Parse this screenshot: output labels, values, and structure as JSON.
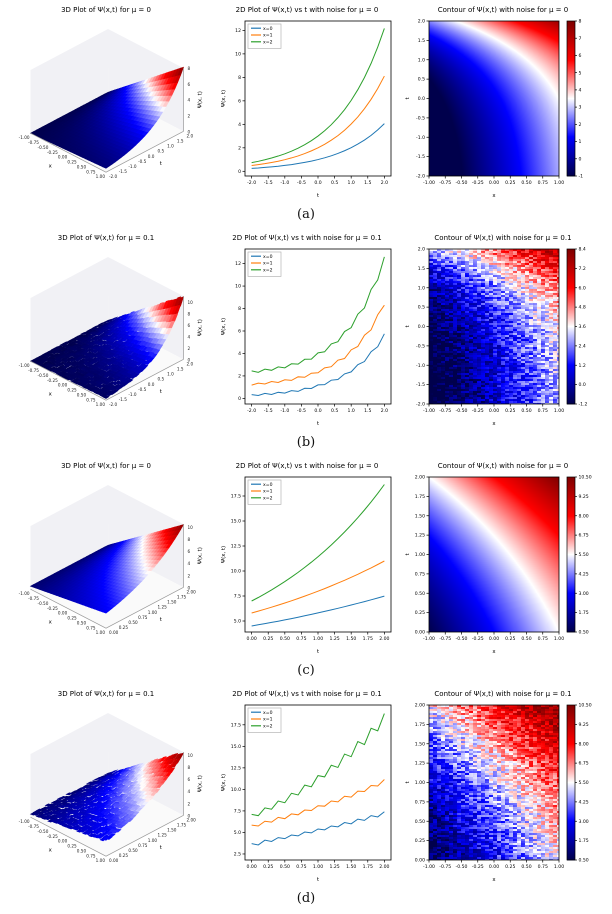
{
  "page": {
    "background": "#ffffff"
  },
  "captions": [
    "(a)",
    "(b)",
    "(c)",
    "(d)"
  ],
  "palette": {
    "series_blue": "#1f77b4",
    "series_orange": "#ff7f0e",
    "series_green": "#2ca02c",
    "seismic_stops": [
      [
        0,
        "#00004c"
      ],
      [
        0.25,
        "#0000ff"
      ],
      [
        0.5,
        "#ffffff"
      ],
      [
        0.75,
        "#ff0000"
      ],
      [
        1,
        "#7f0000"
      ]
    ]
  },
  "chart_data": [
    {
      "id": "a-surface",
      "type": "surface",
      "title": "3D Plot of Ψ(x,t) for μ = 0",
      "xlabel": "x",
      "ylabel": "t",
      "zlabel": "Ψ(x, t)",
      "x_range": [
        -1,
        1
      ],
      "t_range": [
        -2,
        2
      ],
      "z_range": [
        0,
        8
      ],
      "x_ticks": [
        "-1.00",
        "-0.75",
        "-0.50",
        "-0.25",
        "0.00",
        "0.25",
        "0.50",
        "0.75",
        "1.00"
      ],
      "t_ticks": [
        "-2.0",
        "-1.5",
        "-1.0",
        "-0.5",
        "0.0",
        "0.5",
        "1.0",
        "1.5",
        "2.0"
      ],
      "z_ticks": [
        "0",
        "2",
        "4",
        "6",
        "8"
      ],
      "model": {
        "A": 1,
        "k": 0.7,
        "offset": 0,
        "noise": 0
      }
    },
    {
      "id": "a-line",
      "type": "line",
      "title": "2D Plot of Ψ(x,t) vs t with noise for μ = 0",
      "xlabel": "t",
      "ylabel": "Ψ(x, t)",
      "grid": false,
      "legend_loc": "upper left",
      "xlim": [
        -2.2,
        2.2
      ],
      "ylim": [
        -0.4,
        12.8
      ],
      "x_tick_labels": [
        "-2.0",
        "-1.5",
        "-1.0",
        "-0.5",
        "0.0",
        "0.5",
        "1.0",
        "1.5",
        "2.0"
      ],
      "y_tick_labels": [
        "0",
        "2",
        "4",
        "6",
        "8",
        "10",
        "12"
      ],
      "x": [
        -2.0,
        -1.8,
        -1.6,
        -1.4,
        -1.2,
        -1.0,
        -0.8,
        -0.6,
        -0.4,
        -0.2,
        0.0,
        0.2,
        0.4,
        0.6,
        0.8,
        1.0,
        1.2,
        1.4,
        1.6,
        1.8,
        2.0
      ],
      "series": [
        {
          "name": "x=0",
          "color": "#1f77b4",
          "values": [
            0.25,
            0.28,
            0.33,
            0.38,
            0.43,
            0.5,
            0.57,
            0.66,
            0.76,
            0.87,
            1.0,
            1.15,
            1.32,
            1.52,
            1.75,
            2.01,
            2.32,
            2.66,
            3.06,
            3.53,
            4.06
          ]
        },
        {
          "name": "x=1",
          "color": "#ff7f0e",
          "values": [
            0.49,
            0.57,
            0.65,
            0.75,
            0.86,
            0.99,
            1.14,
            1.31,
            1.51,
            1.74,
            2.0,
            2.3,
            2.65,
            3.04,
            3.5,
            4.03,
            4.63,
            5.33,
            6.13,
            7.05,
            8.11
          ]
        },
        {
          "name": "x=2",
          "color": "#2ca02c",
          "values": [
            0.74,
            0.85,
            0.98,
            1.13,
            1.3,
            1.49,
            1.71,
            1.97,
            2.27,
            2.61,
            3.0,
            3.45,
            3.97,
            4.57,
            5.25,
            6.04,
            6.95,
            7.99,
            9.19,
            10.58,
            12.17
          ]
        }
      ]
    },
    {
      "id": "a-contour",
      "type": "heatmap",
      "title": "Contour of Ψ(x,t) with noise for μ = 0",
      "xlabel": "x",
      "ylabel": "t",
      "x_range": [
        -1,
        1
      ],
      "t_range": [
        -2,
        2
      ],
      "vmin": -1,
      "vmax": 8,
      "x_tick_labels": [
        "-1.00",
        "-0.75",
        "-0.50",
        "-0.25",
        "0.00",
        "0.25",
        "0.50",
        "0.75",
        "1.00"
      ],
      "y_tick_labels": [
        "-2.0",
        "-1.5",
        "-1.0",
        "-0.5",
        "0.0",
        "0.5",
        "1.0",
        "1.5",
        "2.0"
      ],
      "colorbar_ticks": [
        "8",
        "7",
        "6",
        "5",
        "4",
        "3",
        "2",
        "1",
        "0",
        "-1"
      ],
      "model": {
        "A": 1,
        "k": 0.8,
        "B": 2.5,
        "C": 0,
        "noise": 0
      }
    },
    {
      "id": "b-surface",
      "type": "surface",
      "title": "3D Plot of Ψ(x,t) for μ = 0.1",
      "xlabel": "x",
      "ylabel": "t",
      "zlabel": "Ψ(x, t)",
      "x_range": [
        -1,
        1
      ],
      "t_range": [
        -2,
        2
      ],
      "z_range": [
        0,
        11
      ],
      "x_ticks": [
        "-1.00",
        "-0.75",
        "-0.50",
        "-0.25",
        "0.00",
        "0.25",
        "0.50",
        "0.75",
        "1.00"
      ],
      "t_ticks": [
        "-2.0",
        "-1.5",
        "-1.0",
        "-0.5",
        "0.0",
        "0.5",
        "1.0",
        "1.5",
        "2.0"
      ],
      "z_ticks": [
        "0",
        "2",
        "4",
        "6",
        "8",
        "10"
      ],
      "model": {
        "A": 1,
        "k": 0.85,
        "offset": 0,
        "noise": 0.2
      }
    },
    {
      "id": "b-line",
      "type": "line",
      "title": "2D Plot of Ψ(x,t) vs t with noise for μ = 0.1",
      "xlabel": "t",
      "ylabel": "Ψ(x, t)",
      "grid": false,
      "legend_loc": "upper left",
      "xlim": [
        -2.2,
        2.2
      ],
      "ylim": [
        -0.5,
        13.3
      ],
      "x_tick_labels": [
        "-2.0",
        "-1.5",
        "-1.0",
        "-0.5",
        "0.0",
        "0.5",
        "1.0",
        "1.5",
        "2.0"
      ],
      "y_tick_labels": [
        "0",
        "2",
        "4",
        "6",
        "8",
        "10",
        "12"
      ],
      "x": [
        -2.0,
        -1.8,
        -1.6,
        -1.4,
        -1.2,
        -1.0,
        -0.8,
        -0.6,
        -0.4,
        -0.2,
        0.0,
        0.2,
        0.4,
        0.6,
        0.8,
        1.0,
        1.2,
        1.4,
        1.6,
        1.8,
        2.0
      ],
      "series": [
        {
          "name": "x=0",
          "color": "#1f77b4",
          "values": [
            0.33,
            0.26,
            0.44,
            0.35,
            0.54,
            0.47,
            0.69,
            0.62,
            0.9,
            0.88,
            1.2,
            1.22,
            1.62,
            1.68,
            2.18,
            2.36,
            3.0,
            3.28,
            4.15,
            4.6,
            5.75
          ]
        },
        {
          "name": "x=1",
          "color": "#ff7f0e",
          "values": [
            1.18,
            1.36,
            1.28,
            1.5,
            1.42,
            1.66,
            1.6,
            1.92,
            1.88,
            2.24,
            2.28,
            2.72,
            2.82,
            3.4,
            3.55,
            4.32,
            4.62,
            5.62,
            6.1,
            7.45,
            8.3
          ]
        },
        {
          "name": "x=2",
          "color": "#2ca02c",
          "values": [
            2.45,
            2.32,
            2.6,
            2.5,
            2.8,
            2.72,
            3.08,
            3.05,
            3.48,
            3.5,
            4.05,
            4.15,
            4.85,
            5.05,
            5.95,
            6.3,
            7.5,
            8.05,
            9.7,
            10.55,
            12.6
          ]
        }
      ]
    },
    {
      "id": "b-contour",
      "type": "heatmap",
      "title": "Contour of Ψ(x,t) with noise for μ = 0.1",
      "xlabel": "x",
      "ylabel": "t",
      "x_range": [
        -1,
        1
      ],
      "t_range": [
        -2,
        2
      ],
      "vmin": -1.2,
      "vmax": 8.4,
      "x_tick_labels": [
        "-1.00",
        "-0.75",
        "-0.50",
        "-0.25",
        "0.00",
        "0.25",
        "0.50",
        "0.75",
        "1.00"
      ],
      "y_tick_labels": [
        "-2.0",
        "-1.5",
        "-1.0",
        "-0.5",
        "0.0",
        "0.5",
        "1.0",
        "1.5",
        "2.0"
      ],
      "colorbar_ticks": [
        "8.4",
        "7.2",
        "6.0",
        "4.8",
        "3.6",
        "2.4",
        "1.2",
        "0.0",
        "-1.2"
      ],
      "model": {
        "A": 1,
        "k": 0.8,
        "B": 2.5,
        "C": 0.2,
        "noise": 1.1
      }
    },
    {
      "id": "c-surface",
      "type": "surface",
      "title": "3D Plot of Ψ(x,t) for μ = 0",
      "xlabel": "x",
      "ylabel": "t",
      "zlabel": "Ψ(x, t)",
      "x_range": [
        -1,
        1
      ],
      "t_range": [
        0,
        2
      ],
      "z_range": [
        0,
        10.5
      ],
      "x_ticks": [
        "-1.00",
        "-0.75",
        "-0.50",
        "-0.25",
        "0.00",
        "0.25",
        "0.50",
        "0.75",
        "1.00"
      ],
      "t_ticks": [
        "0.00",
        "0.25",
        "0.50",
        "0.75",
        "1.00",
        "1.25",
        "1.50",
        "1.75",
        "2.00"
      ],
      "z_ticks": [
        "0",
        "2",
        "4",
        "6",
        "8",
        "10"
      ],
      "model": {
        "A": 1,
        "k": 0.8,
        "offset": 0.5,
        "noise": 0
      }
    },
    {
      "id": "c-line",
      "type": "line",
      "title": "2D Plot of Ψ(x,t) vs t with noise for μ = 0",
      "xlabel": "t",
      "ylabel": "Ψ(x, t)",
      "grid": false,
      "legend_loc": "upper left",
      "xlim": [
        -0.1,
        2.1
      ],
      "ylim": [
        3.9,
        19.4
      ],
      "x_tick_labels": [
        "0.00",
        "0.25",
        "0.50",
        "0.75",
        "1.00",
        "1.25",
        "1.50",
        "1.75",
        "2.00"
      ],
      "y_tick_labels": [
        "5.0",
        "7.5",
        "10.0",
        "12.5",
        "15.0",
        "17.5"
      ],
      "x": [
        0.0,
        0.1,
        0.2,
        0.3,
        0.4,
        0.5,
        0.6,
        0.7,
        0.8,
        0.9,
        1.0,
        1.1,
        1.2,
        1.3,
        1.4,
        1.5,
        1.6,
        1.7,
        1.8,
        1.9,
        2.0
      ],
      "series": [
        {
          "name": "x=0",
          "color": "#1f77b4",
          "values": [
            4.5,
            4.62,
            4.74,
            4.86,
            4.98,
            5.11,
            5.24,
            5.38,
            5.52,
            5.66,
            5.81,
            5.96,
            6.11,
            6.27,
            6.43,
            6.6,
            6.77,
            6.94,
            7.12,
            7.3,
            7.49
          ]
        },
        {
          "name": "x=1",
          "color": "#ff7f0e",
          "values": [
            5.8,
            5.99,
            6.18,
            6.38,
            6.59,
            6.8,
            7.02,
            7.25,
            7.49,
            7.73,
            7.98,
            8.24,
            8.51,
            8.79,
            9.07,
            9.37,
            9.67,
            9.99,
            10.31,
            10.65,
            11.0
          ]
        },
        {
          "name": "x=2",
          "color": "#2ca02c",
          "values": [
            7.0,
            7.35,
            7.72,
            8.11,
            8.52,
            8.94,
            9.39,
            9.86,
            10.36,
            10.88,
            11.43,
            12.0,
            12.6,
            13.24,
            13.9,
            14.6,
            15.33,
            16.1,
            16.91,
            17.76,
            18.65
          ]
        }
      ]
    },
    {
      "id": "c-contour",
      "type": "heatmap",
      "title": "Contour of Ψ(x,t) with noise for μ = 0",
      "xlabel": "x",
      "ylabel": "t",
      "x_range": [
        -1,
        1
      ],
      "t_range": [
        0,
        2
      ],
      "vmin": 0.5,
      "vmax": 10.5,
      "x_tick_labels": [
        "-1.00",
        "-0.75",
        "-0.50",
        "-0.25",
        "0.00",
        "0.25",
        "0.50",
        "0.75",
        "1.00"
      ],
      "y_tick_labels": [
        "0.00",
        "0.25",
        "0.50",
        "0.75",
        "1.00",
        "1.25",
        "1.50",
        "1.75",
        "2.00"
      ],
      "colorbar_ticks": [
        "10.50",
        "9.25",
        "8.00",
        "6.75",
        "5.50",
        "4.25",
        "3.00",
        "1.75",
        "0.50"
      ],
      "model": {
        "A": 2.91,
        "k": 0.5,
        "B": 2.5,
        "C": 0.09,
        "noise": 0
      }
    },
    {
      "id": "d-surface",
      "type": "surface",
      "title": "3D Plot of Ψ(x,t) for μ = 0.1",
      "xlabel": "x",
      "ylabel": "t",
      "zlabel": "Ψ(x, t)",
      "x_range": [
        -1,
        1
      ],
      "t_range": [
        0,
        2
      ],
      "z_range": [
        0,
        10.5
      ],
      "x_ticks": [
        "-1.00",
        "-0.75",
        "-0.50",
        "-0.25",
        "0.00",
        "0.25",
        "0.50",
        "0.75",
        "1.00"
      ],
      "t_ticks": [
        "0.00",
        "0.25",
        "0.50",
        "0.75",
        "1.00",
        "1.25",
        "1.50",
        "1.75",
        "2.00"
      ],
      "z_ticks": [
        "0",
        "2",
        "4",
        "6",
        "8",
        "10"
      ],
      "model": {
        "A": 1,
        "k": 0.8,
        "offset": 0.5,
        "noise": 0.3
      }
    },
    {
      "id": "d-line",
      "type": "line",
      "title": "2D Plot of Ψ(x,t) vs t with noise for μ = 0.1",
      "xlabel": "t",
      "ylabel": "Ψ(x, t)",
      "grid": false,
      "legend_loc": "upper left",
      "xlim": [
        -0.1,
        2.1
      ],
      "ylim": [
        1.8,
        19.8
      ],
      "x_tick_labels": [
        "0.00",
        "0.25",
        "0.50",
        "0.75",
        "1.00",
        "1.25",
        "1.50",
        "1.75",
        "2.00"
      ],
      "y_tick_labels": [
        "2.5",
        "5.0",
        "7.5",
        "10.0",
        "12.5",
        "15.0",
        "17.5"
      ],
      "x": [
        0.0,
        0.1,
        0.2,
        0.3,
        0.4,
        0.5,
        0.6,
        0.7,
        0.8,
        0.9,
        1.0,
        1.1,
        1.2,
        1.3,
        1.4,
        1.5,
        1.6,
        1.7,
        1.8,
        1.9,
        2.0
      ],
      "series": [
        {
          "name": "x=0",
          "color": "#1f77b4",
          "values": [
            3.7,
            3.55,
            4.1,
            3.95,
            4.4,
            4.28,
            4.7,
            4.6,
            5.05,
            4.95,
            5.4,
            5.3,
            5.75,
            5.65,
            6.15,
            6.0,
            6.55,
            6.4,
            6.95,
            6.8,
            7.4
          ]
        },
        {
          "name": "x=1",
          "color": "#ff7f0e",
          "values": [
            5.85,
            5.75,
            6.3,
            6.2,
            6.75,
            6.6,
            7.15,
            7.05,
            7.6,
            7.55,
            8.1,
            8.05,
            8.65,
            8.55,
            9.2,
            9.1,
            9.8,
            9.75,
            10.45,
            10.4,
            11.15
          ]
        },
        {
          "name": "x=2",
          "color": "#2ca02c",
          "values": [
            7.1,
            6.95,
            7.85,
            7.7,
            8.65,
            8.45,
            9.55,
            9.35,
            10.5,
            10.3,
            11.6,
            11.45,
            12.8,
            12.55,
            14.1,
            13.8,
            15.55,
            15.2,
            17.1,
            16.8,
            18.8
          ]
        }
      ]
    },
    {
      "id": "d-contour",
      "type": "heatmap",
      "title": "Contour of Ψ(x,t) with noise for μ = 0.1",
      "xlabel": "x",
      "ylabel": "t",
      "x_range": [
        -1,
        1
      ],
      "t_range": [
        0,
        2
      ],
      "vmin": 0.5,
      "vmax": 10.5,
      "x_tick_labels": [
        "-1.00",
        "-0.75",
        "-0.50",
        "-0.25",
        "0.00",
        "0.25",
        "0.50",
        "0.75",
        "1.00"
      ],
      "y_tick_labels": [
        "0.00",
        "0.25",
        "0.50",
        "0.75",
        "1.00",
        "1.25",
        "1.50",
        "1.75",
        "2.00"
      ],
      "colorbar_ticks": [
        "10.50",
        "9.25",
        "8.00",
        "6.75",
        "5.50",
        "4.25",
        "3.00",
        "1.75",
        "0.50"
      ],
      "model": {
        "A": 2.91,
        "k": 0.5,
        "B": 2.5,
        "C": 0.09,
        "noise": 1.2
      }
    }
  ]
}
